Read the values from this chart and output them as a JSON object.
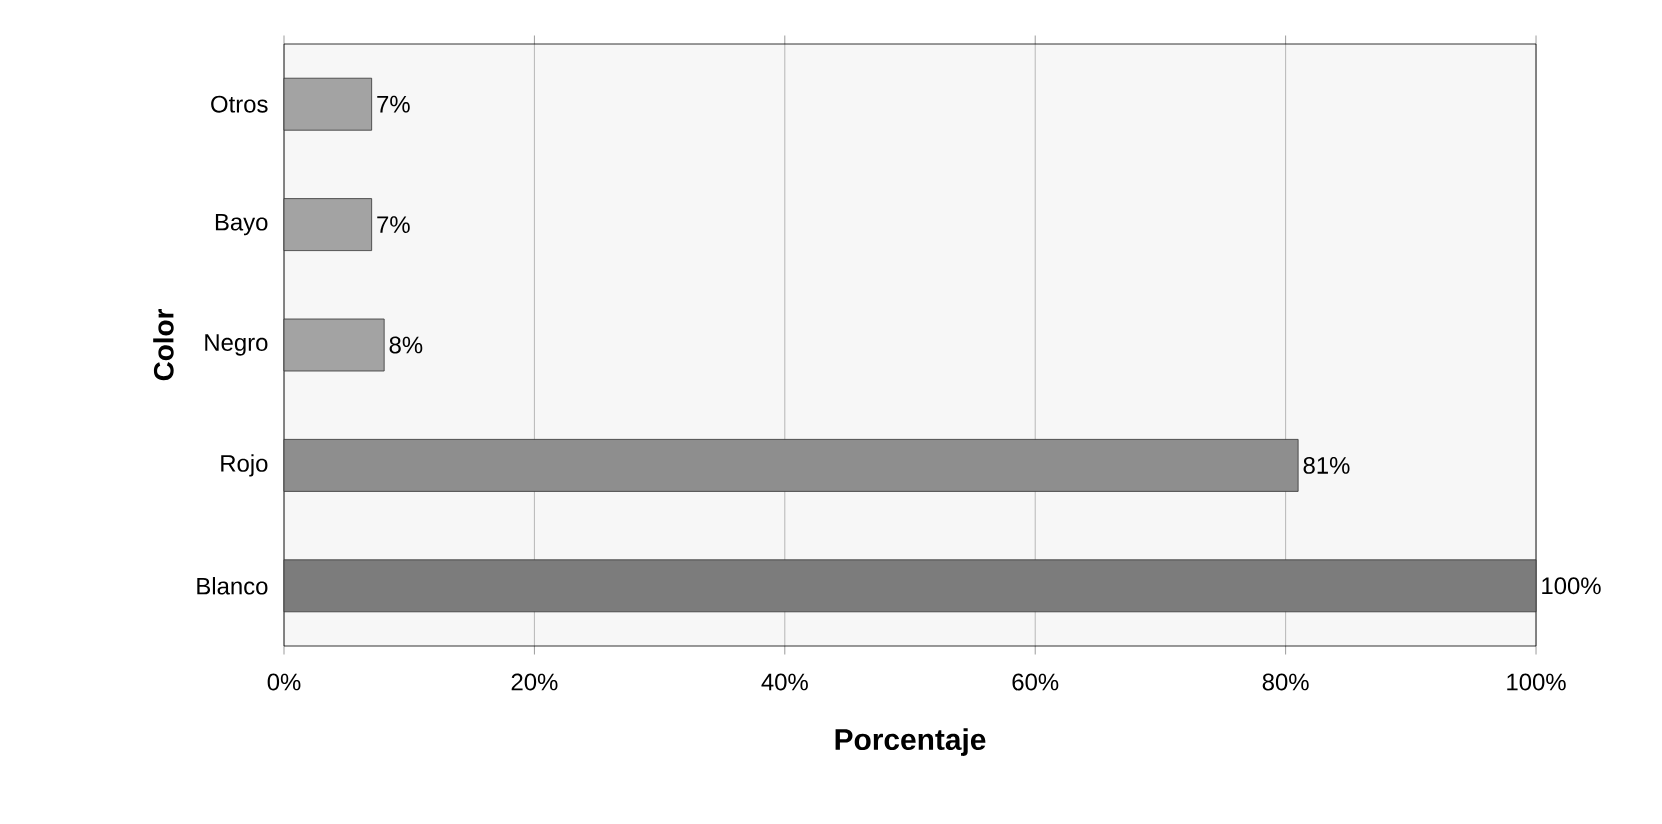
{
  "chart_data": {
    "type": "bar",
    "orientation": "horizontal",
    "xlabel": "Porcentaje",
    "ylabel": "Color",
    "categories": [
      "Otros",
      "Bayo",
      "Negro",
      "Rojo",
      "Blanco"
    ],
    "values": [
      7,
      7,
      8,
      81,
      100
    ],
    "value_labels": [
      "7%",
      "7%",
      "8%",
      "81%",
      "100%"
    ],
    "colors": [
      "#a3a3a3",
      "#a3a3a3",
      "#a3a3a3",
      "#8e8e8e",
      "#7c7c7c"
    ],
    "xlim": [
      0,
      100
    ],
    "xticks": [
      {
        "value": 0,
        "label": "0%"
      },
      {
        "value": 20,
        "label": "20%"
      },
      {
        "value": 40,
        "label": "40%"
      },
      {
        "value": 60,
        "label": "60%"
      },
      {
        "value": 80,
        "label": "80%"
      },
      {
        "value": 100,
        "label": "100%"
      }
    ],
    "grid": "x"
  }
}
